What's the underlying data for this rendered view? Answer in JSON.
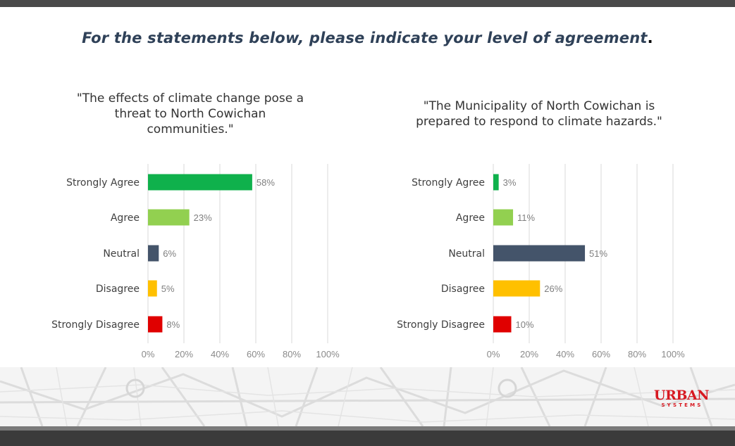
{
  "heading": {
    "text": "For the statements below, please indicate your level of agreement",
    "period": "."
  },
  "colors": {
    "strongly_agree": "#0fb14c",
    "agree": "#92d050",
    "neutral": "#44546a",
    "disagree": "#ffc000",
    "strongly_disagree": "#e00000",
    "heading": "#2f4158"
  },
  "logo": {
    "word": "URBAN",
    "sub": "SYSTEMS"
  },
  "chart_data": [
    {
      "type": "bar",
      "orientation": "horizontal",
      "title": "\"The effects of climate change pose a threat to North Cowichan communities.\"",
      "title_lines": [
        "\"The effects of climate change pose a",
        "threat to North Cowichan",
        "communities.\""
      ],
      "categories": [
        "Strongly Agree",
        "Agree",
        "Neutral",
        "Disagree",
        "Strongly Disagree"
      ],
      "values": [
        58,
        23,
        6,
        5,
        8
      ],
      "value_labels": [
        "58%",
        "23%",
        "6%",
        "5%",
        "8%"
      ],
      "xlim": [
        0,
        100
      ],
      "ticks": [
        "0%",
        "20%",
        "40%",
        "60%",
        "80%",
        "100%"
      ],
      "grid": true
    },
    {
      "type": "bar",
      "orientation": "horizontal",
      "title": "\"The Municipality of North Cowichan is prepared to respond to climate hazards.\"",
      "title_lines": [
        "\"The Municipality of North Cowichan is",
        "prepared to respond to climate hazards.\""
      ],
      "categories": [
        "Strongly Agree",
        "Agree",
        "Neutral",
        "Disagree",
        "Strongly Disagree"
      ],
      "values": [
        3,
        11,
        51,
        26,
        10
      ],
      "value_labels": [
        "3%",
        "11%",
        "51%",
        "26%",
        "10%"
      ],
      "xlim": [
        0,
        100
      ],
      "ticks": [
        "0%",
        "20%",
        "40%",
        "60%",
        "80%",
        "100%"
      ],
      "grid": true
    }
  ]
}
